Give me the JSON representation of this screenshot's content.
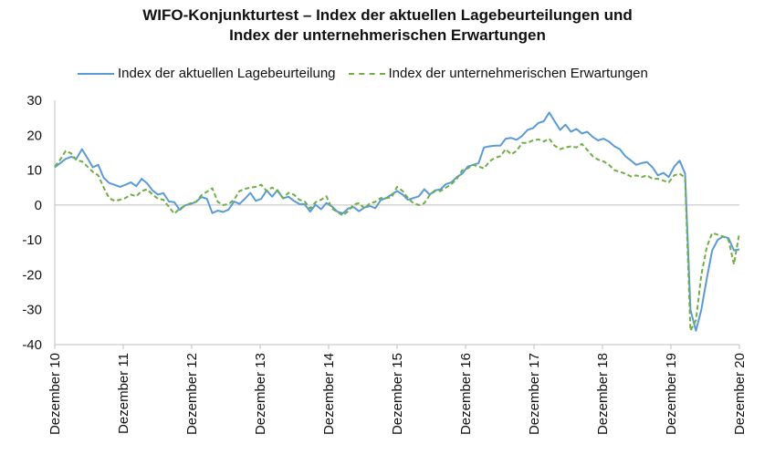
{
  "title_line1": "WIFO-Konjunkturtest – Index der aktuellen Lagebeurteilungen und",
  "title_line2": "Index der unternehmerischen Erwartungen",
  "chart_data": {
    "type": "line",
    "title": "WIFO-Konjunkturtest – Index der aktuellen Lagebeurteilungen und Index der unternehmerischen Erwartungen",
    "xlabel": "",
    "ylabel": "",
    "ylim": [
      -40,
      30
    ],
    "yticks": [
      30,
      20,
      10,
      0,
      -10,
      -20,
      -30,
      -40
    ],
    "x_tick_labels": [
      "Dezember 10",
      "Dezember 11",
      "Dezember 12",
      "Dezember 13",
      "Dezember 14",
      "Dezember 15",
      "Dezember 16",
      "Dezember 17",
      "Dezember 18",
      "Dezember 19",
      "Dezember 20"
    ],
    "x_start": "2010-12",
    "x_end": "2020-12",
    "grid": false,
    "legend_position": "top",
    "series": [
      {
        "name": "Index der aktuellen Lagebeurteilung",
        "color": "#5b9bd5",
        "style": "solid",
        "values": [
          10.8,
          12.0,
          13.2,
          13.8,
          13.3,
          16.0,
          13.5,
          10.8,
          11.5,
          7.8,
          6.3,
          5.8,
          5.2,
          5.8,
          6.5,
          5.4,
          7.5,
          6.2,
          4.2,
          3.0,
          3.4,
          1.0,
          0.8,
          -1.4,
          -0.1,
          0.3,
          0.9,
          2.3,
          1.8,
          -2.3,
          -1.6,
          -2.0,
          -1.3,
          1.0,
          0.3,
          1.8,
          3.5,
          1.2,
          1.8,
          4.2,
          2.4,
          4.3,
          1.9,
          2.4,
          1.2,
          0.3,
          0.2,
          -1.9,
          0.1,
          -1.2,
          0.6,
          -0.4,
          -1.9,
          -2.4,
          -1.0,
          -0.6,
          -1.8,
          -0.7,
          -0.3,
          -0.9,
          1.4,
          2.0,
          3.0,
          4.0,
          3.0,
          1.5,
          2.0,
          2.5,
          4.5,
          3.0,
          4.2,
          4.5,
          6.0,
          6.5,
          8.0,
          9.0,
          11.0,
          11.5,
          12.0,
          16.5,
          16.8,
          17.0,
          17.0,
          19.0,
          19.2,
          18.7,
          19.8,
          21.5,
          22.0,
          23.5,
          24.0,
          26.5,
          24.0,
          21.5,
          23.0,
          21.0,
          21.8,
          20.5,
          21.0,
          19.5,
          18.5,
          19.0,
          18.2,
          16.8,
          16.0,
          14.0,
          12.8,
          11.5,
          12.0,
          12.3,
          10.8,
          8.5,
          9.2,
          8.0,
          11.0,
          12.7,
          9.0,
          -30.0,
          -36.0,
          -30.0,
          -21.0,
          -13.0,
          -10.0,
          -9.0,
          -9.5,
          -13.0,
          -12.7
        ]
      },
      {
        "name": "Index der unternehmerischen Erwartungen",
        "color": "#70ad47",
        "style": "dashed",
        "values": [
          11.0,
          13.0,
          15.5,
          14.8,
          12.8,
          12.5,
          11.0,
          9.5,
          8.5,
          5.0,
          2.0,
          1.2,
          1.5,
          2.0,
          3.0,
          2.5,
          4.0,
          4.5,
          3.0,
          1.8,
          1.5,
          -0.5,
          -2.5,
          -1.0,
          -0.2,
          0.5,
          0.9,
          2.8,
          3.8,
          4.8,
          0.9,
          0.0,
          0.3,
          1.5,
          4.0,
          4.6,
          5.0,
          5.2,
          5.8,
          4.0,
          5.0,
          4.0,
          2.0,
          3.5,
          3.0,
          1.5,
          1.0,
          -1.0,
          0.8,
          1.5,
          2.5,
          -1.0,
          -2.0,
          -3.0,
          -1.8,
          0.2,
          0.5,
          -1.0,
          0.5,
          0.9,
          2.0,
          2.0,
          2.2,
          5.2,
          4.0,
          2.0,
          0.5,
          0.0,
          0.5,
          2.8,
          4.0,
          4.0,
          5.0,
          6.0,
          7.5,
          10.0,
          10.5,
          11.5,
          11.0,
          10.5,
          12.5,
          13.5,
          14.0,
          16.0,
          14.5,
          15.5,
          17.8,
          17.8,
          18.5,
          18.8,
          18.2,
          19.0,
          17.0,
          16.0,
          16.5,
          16.8,
          16.5,
          17.5,
          15.8,
          14.0,
          13.0,
          12.5,
          11.5,
          10.0,
          9.5,
          9.0,
          8.2,
          8.5,
          8.0,
          8.5,
          7.5,
          7.5,
          7.0,
          6.5,
          8.5,
          9.0,
          7.8,
          -36.0,
          -33.0,
          -20.0,
          -12.0,
          -8.0,
          -8.5,
          -9.0,
          -10.0,
          -17.0,
          -8.0
        ]
      }
    ]
  }
}
